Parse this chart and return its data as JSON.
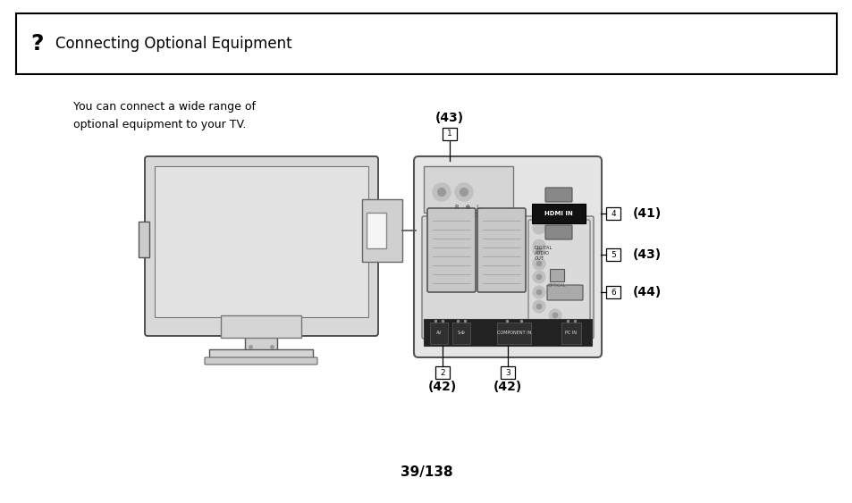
{
  "background_color": "#ffffff",
  "title_question": "?",
  "title_text": "Connecting Optional Equipment",
  "body_text": "You can connect a wide range of\noptional equipment to your TV.",
  "page_number": "39/138",
  "label_43_top": "(43)",
  "label_42_2": "(42)",
  "label_42_3": "(42)",
  "label_41": "(41)",
  "label_43_right": "(43)",
  "label_44": "(44)"
}
